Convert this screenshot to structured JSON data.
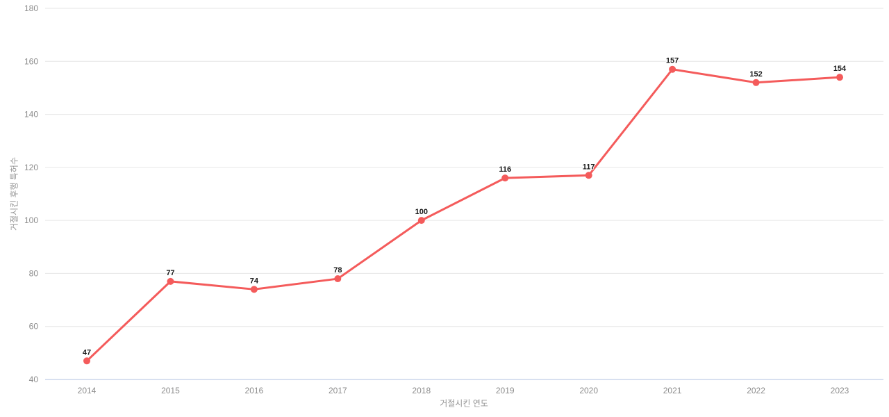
{
  "chart_data": {
    "type": "line",
    "title": "",
    "categories": [
      "2014",
      "2015",
      "2016",
      "2017",
      "2018",
      "2019",
      "2020",
      "2021",
      "2022",
      "2023"
    ],
    "series": [
      {
        "values": [
          47,
          77,
          74,
          78,
          100,
          116,
          117,
          157,
          152,
          154
        ]
      }
    ],
    "data_labels": [
      "47",
      "77",
      "74",
      "78",
      "100",
      "116",
      "117",
      "157",
      "152",
      "154"
    ],
    "xlabel": "거절시킨 연도",
    "ylabel": "거절시킨 후행 특허수",
    "ylim": [
      40,
      180
    ],
    "yticks": [
      40,
      60,
      80,
      100,
      120,
      140,
      160,
      180
    ],
    "grid": "horizontal",
    "legend": "none",
    "colors": {
      "series": "#f45b5b",
      "grid": "#e6e6e6",
      "axis_line": "#ccd6eb",
      "tick_label": "#8c8c8c",
      "axis_title": "#949494",
      "data_label": "#1a1a1a",
      "background": "#ffffff"
    }
  }
}
